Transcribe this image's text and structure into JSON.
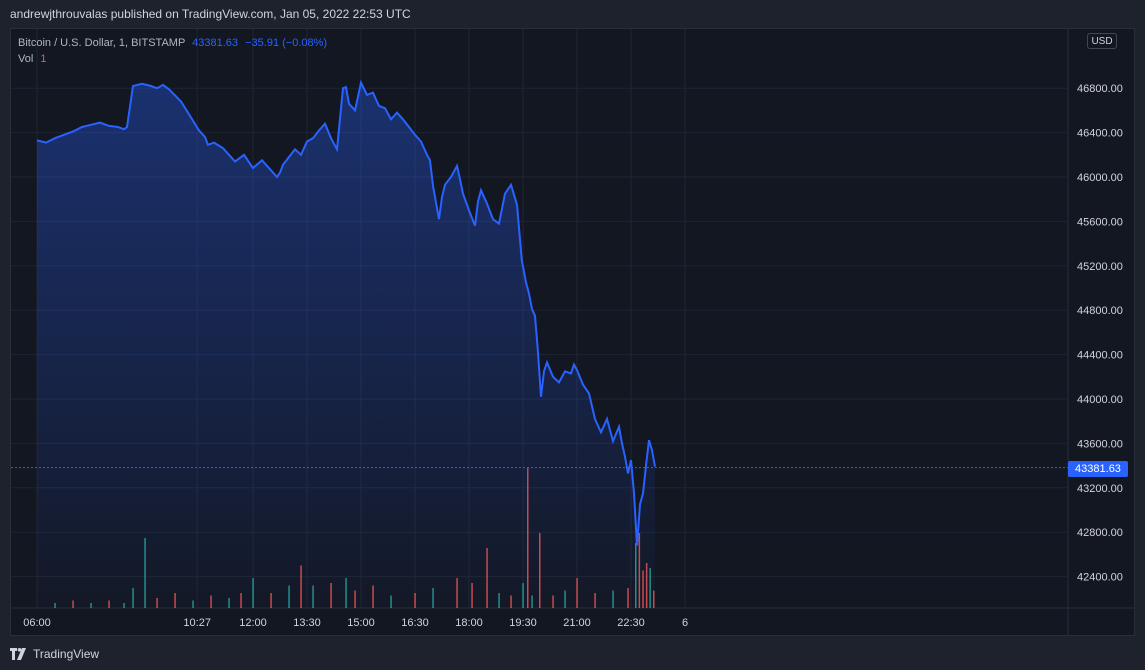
{
  "header": {
    "published": "andrewjthrouvalas published on TradingView.com, Jan 05, 2022 22:53 UTC"
  },
  "legend": {
    "symbol": "Bitcoin / U.S. Dollar, 1, BITSTAMP",
    "price": "43381.63",
    "change": "−35.91 (−0.08%)",
    "vol_label": "Vol",
    "vol_value": "1"
  },
  "currency": "USD",
  "last_price_tag": "43381.63",
  "footer": {
    "brand": "TradingView"
  },
  "colors": {
    "line": "#2962ff",
    "vol_up": "#26a69a",
    "vol_down": "#ef5350",
    "background": "#131722"
  },
  "chart_data": {
    "type": "area",
    "y_ticks": [
      42400,
      42800,
      43200,
      43600,
      44000,
      44400,
      44800,
      45200,
      45600,
      46000,
      46400,
      46800
    ],
    "y_tick_labels": [
      "42400.00",
      "42800.00",
      "43200.00",
      "43600.00",
      "44000.00",
      "44400.00",
      "44800.00",
      "45200.00",
      "45600.00",
      "46000.00",
      "46400.00",
      "46800.00"
    ],
    "x_tick_labels": [
      "06:00",
      "10:27",
      "12:00",
      "13:30",
      "15:00",
      "16:30",
      "18:00",
      "19:30",
      "21:00",
      "22:30",
      "6"
    ],
    "x_tick_positions_min": [
      0,
      267,
      360,
      450,
      540,
      630,
      720,
      810,
      900,
      990,
      1080
    ],
    "last_price": 43381.63,
    "series": [
      {
        "x_min": [
          0,
          15,
          30,
          45,
          60,
          75,
          90,
          105,
          120,
          135,
          145,
          150,
          160,
          175,
          190,
          200,
          210,
          220,
          240,
          255,
          270,
          280,
          285,
          295,
          310,
          330,
          345,
          360,
          375,
          390,
          400,
          405,
          410,
          420,
          430,
          440,
          450,
          460,
          470,
          480,
          490,
          500,
          510,
          515,
          520,
          530,
          540,
          550,
          560,
          570,
          580,
          590,
          600,
          610,
          620,
          630,
          640,
          650,
          655,
          660,
          670,
          675,
          680,
          690,
          700,
          705,
          710,
          720,
          730,
          735,
          740,
          750,
          760,
          770,
          780,
          790,
          800,
          808,
          815,
          820,
          825,
          830,
          835,
          840,
          845,
          850,
          860,
          870,
          880,
          890,
          895,
          900,
          910,
          920,
          930,
          940,
          950,
          960,
          970,
          975,
          980,
          985,
          990,
          995,
          1000,
          1005,
          1010,
          1015,
          1020,
          1025,
          1030
        ],
        "y": [
          46330,
          46310,
          46350,
          46380,
          46410,
          46450,
          46470,
          46490,
          46460,
          46450,
          46430,
          46450,
          46820,
          46840,
          46820,
          46800,
          46830,
          46790,
          46680,
          46550,
          46420,
          46360,
          46290,
          46310,
          46260,
          46140,
          46200,
          46080,
          46150,
          46060,
          46000,
          46040,
          46110,
          46180,
          46250,
          46200,
          46320,
          46350,
          46420,
          46480,
          46350,
          46250,
          46800,
          46810,
          46660,
          46600,
          46850,
          46740,
          46760,
          46640,
          46620,
          46520,
          46580,
          46520,
          46450,
          46380,
          46320,
          46200,
          46150,
          45920,
          45620,
          45820,
          45930,
          46000,
          46100,
          45980,
          45850,
          45700,
          45560,
          45780,
          45880,
          45760,
          45620,
          45580,
          45850,
          45930,
          45750,
          45250,
          45050,
          44950,
          44810,
          44750,
          44420,
          44020,
          44250,
          44330,
          44200,
          44150,
          44250,
          44230,
          44310,
          44260,
          44130,
          44050,
          43820,
          43700,
          43820,
          43620,
          43750,
          43600,
          43480,
          43330,
          43450,
          43150,
          42680,
          43050,
          43150,
          43400,
          43630,
          43540,
          43390
        ]
      }
    ],
    "volume_x_min": [
      30,
      60,
      90,
      120,
      145,
      160,
      180,
      200,
      230,
      260,
      290,
      320,
      340,
      360,
      390,
      420,
      440,
      460,
      490,
      515,
      530,
      560,
      590,
      630,
      660,
      700,
      725,
      750,
      770,
      790,
      810,
      818,
      825,
      838,
      860,
      880,
      900,
      930,
      960,
      985,
      998,
      1004,
      1010,
      1016,
      1022,
      1028
    ],
    "volume": [
      2,
      3,
      2,
      3,
      2,
      8,
      28,
      4,
      6,
      3,
      5,
      4,
      6,
      12,
      6,
      9,
      17,
      9,
      10,
      12,
      7,
      9,
      5,
      6,
      8,
      12,
      10,
      24,
      6,
      5,
      10,
      56,
      5,
      30,
      5,
      7,
      12,
      6,
      7,
      8,
      26,
      30,
      15,
      18,
      16,
      7
    ],
    "volume_direction": [
      "up",
      "down",
      "up",
      "down",
      "up",
      "up",
      "up",
      "down",
      "down",
      "up",
      "down",
      "up",
      "down",
      "up",
      "down",
      "up",
      "down",
      "up",
      "down",
      "up",
      "down",
      "down",
      "up",
      "down",
      "up",
      "down",
      "down",
      "down",
      "up",
      "down",
      "up",
      "down",
      "up",
      "down",
      "down",
      "up",
      "down",
      "down",
      "up",
      "down",
      "up",
      "down",
      "down",
      "down",
      "up",
      "down"
    ]
  }
}
